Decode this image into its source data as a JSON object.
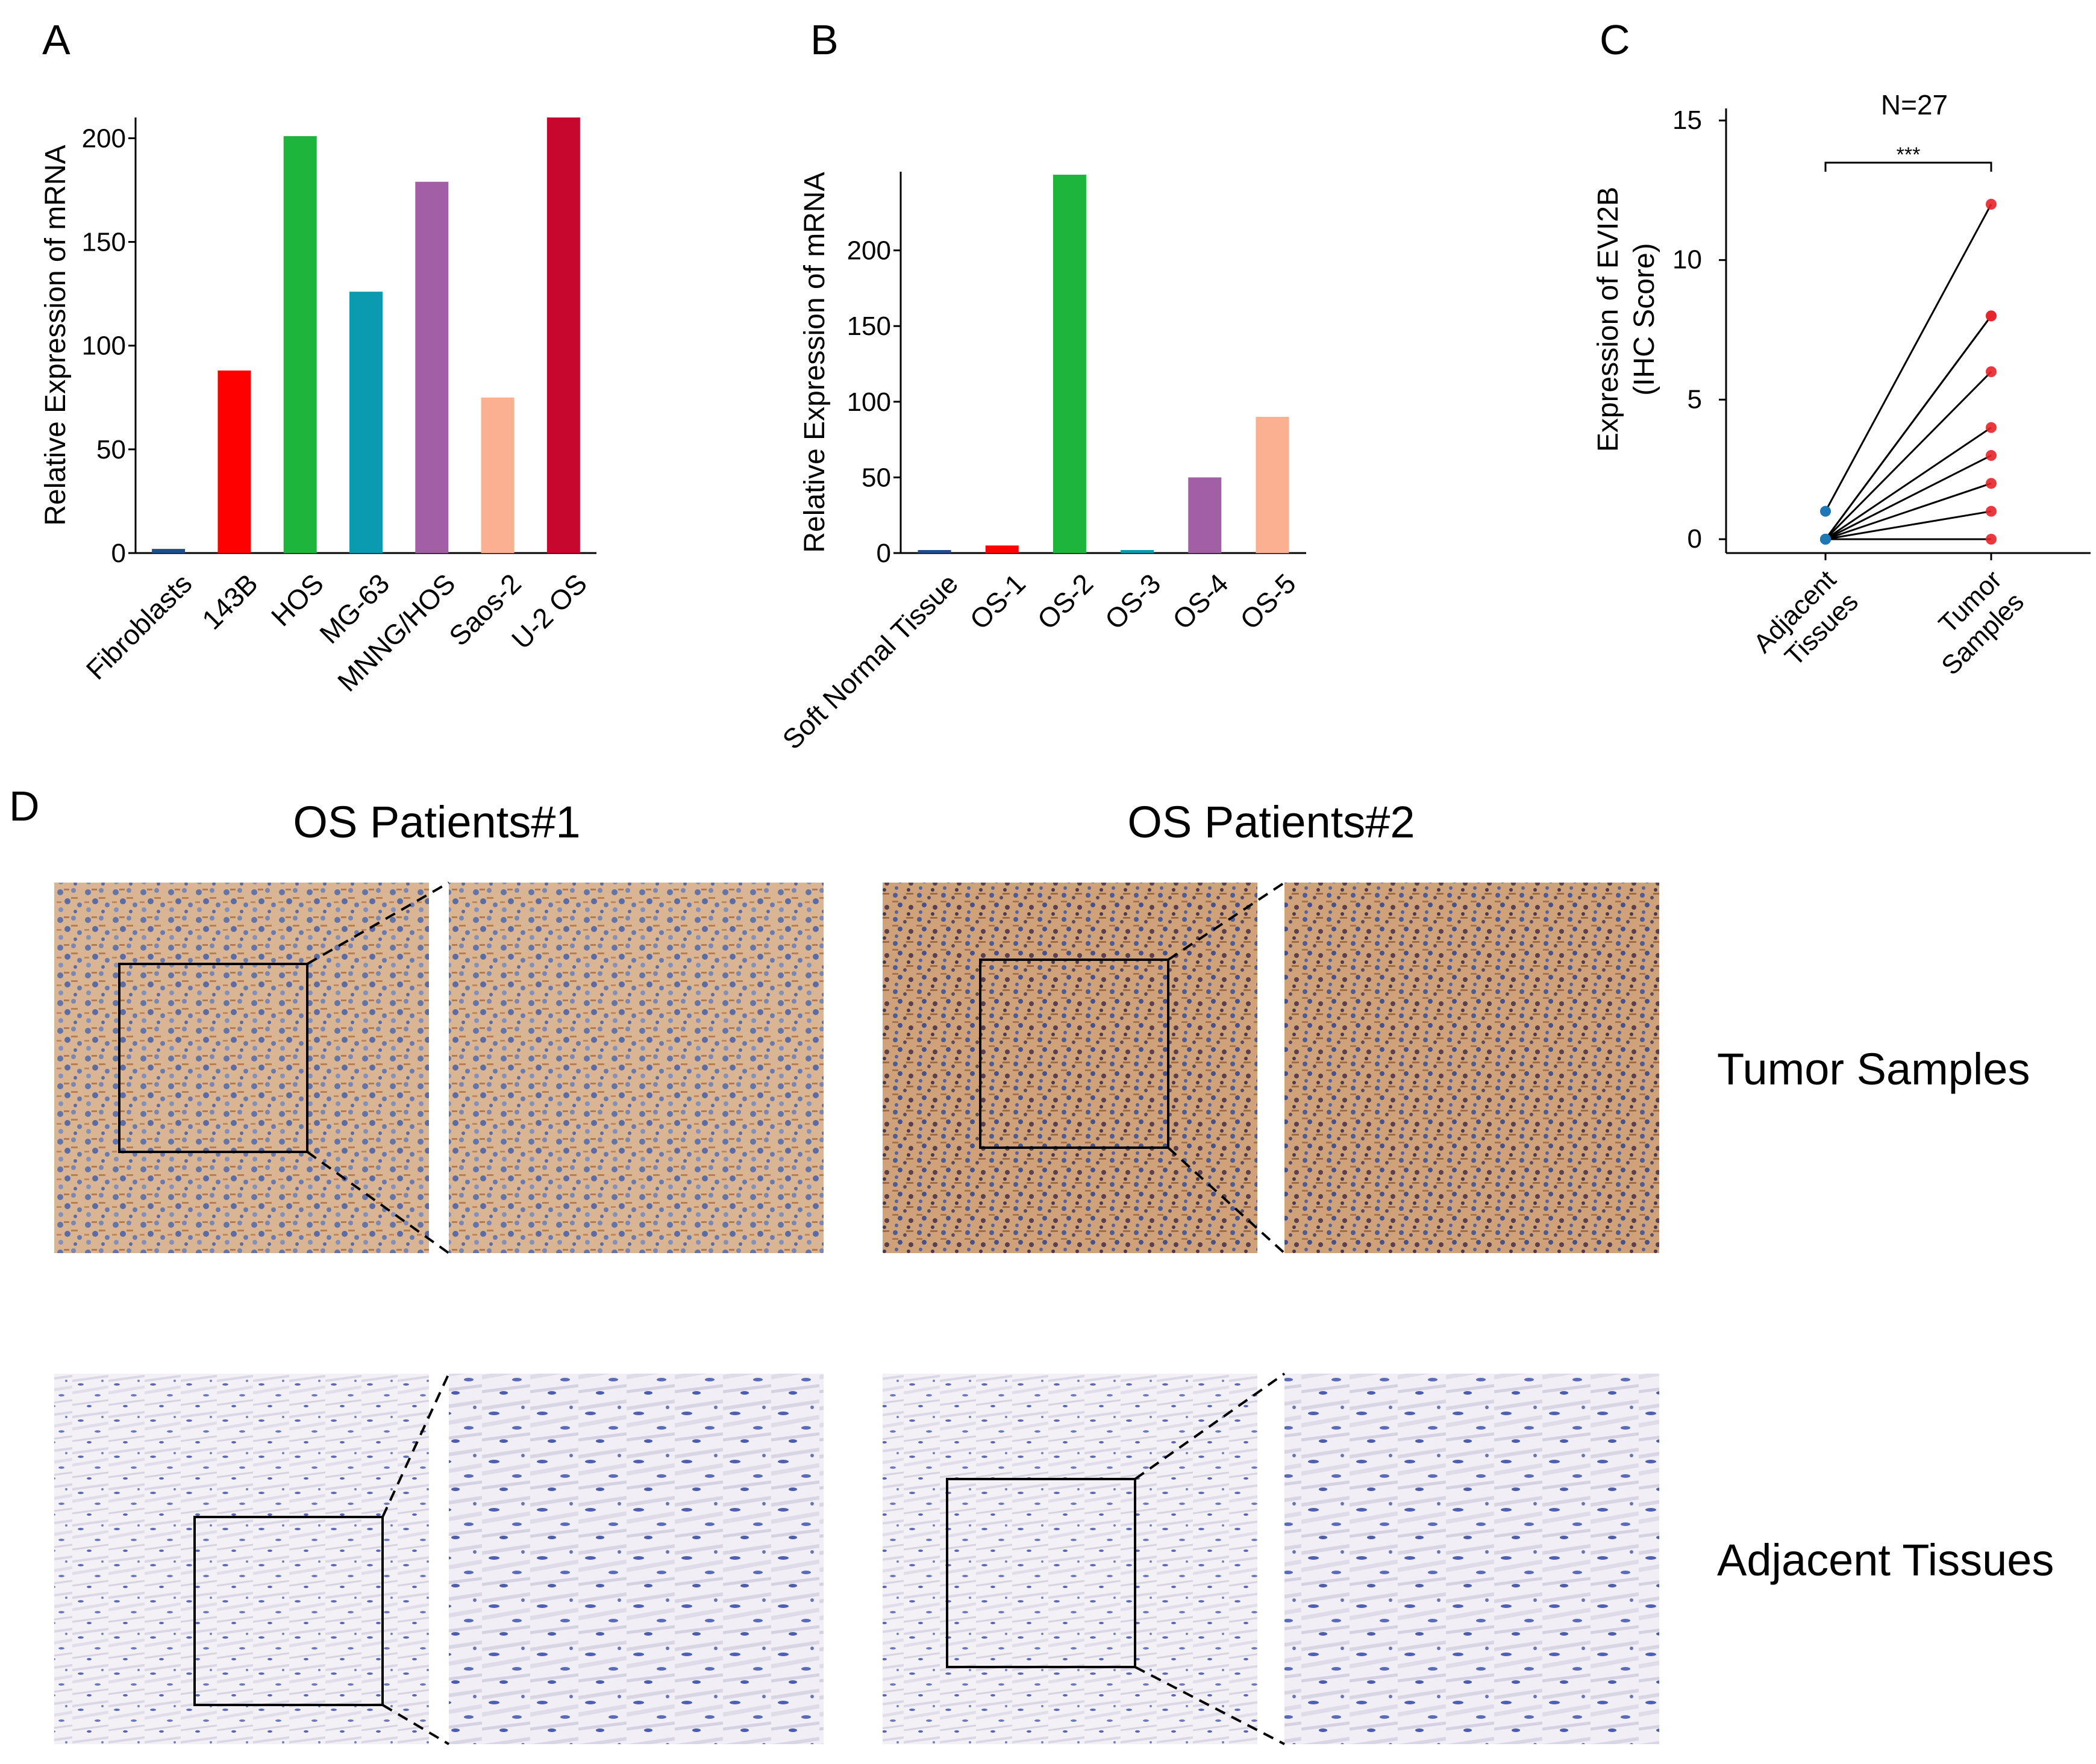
{
  "panels": {
    "a_letter": "A",
    "b_letter": "B",
    "c_letter": "C",
    "d_letter": "D"
  },
  "chart_data": [
    {
      "type": "bar",
      "panel": "A",
      "ylabel": "Relative Expression of mRNA",
      "xlabel": "",
      "categories": [
        "Fibroblasts",
        "143B",
        "HOS",
        "MG-63",
        "MNNG/HOS",
        "Saos-2",
        "U-2 OS"
      ],
      "values": [
        2,
        88,
        201,
        126,
        179,
        75,
        210
      ],
      "colors": [
        "#1F4E8C",
        "#FF0000",
        "#1DB53C",
        "#0A9BB0",
        "#A35FA6",
        "#FBB091",
        "#C8072F"
      ],
      "yticks": [
        0,
        50,
        100,
        150,
        200
      ],
      "ylim": [
        0,
        210
      ],
      "grid": false
    },
    {
      "type": "bar",
      "panel": "B",
      "ylabel": "Relative Expression of mRNA",
      "xlabel": "",
      "categories": [
        "Soft Normal Tissue",
        "OS-1",
        "OS-2",
        "OS-3",
        "OS-4",
        "OS-5"
      ],
      "values": [
        2,
        5,
        250,
        2,
        50,
        90
      ],
      "colors": [
        "#1F4E8C",
        "#FF0000",
        "#1DB53C",
        "#0A9BB0",
        "#A35FA6",
        "#FBB091"
      ],
      "yticks": [
        0,
        50,
        100,
        150,
        200
      ],
      "ylim": [
        0,
        252
      ],
      "grid": false
    },
    {
      "type": "scatter",
      "panel": "C",
      "title": "N=27",
      "ylabel_line1": "Expression of EVI2B",
      "ylabel_line2": "(IHC Score)",
      "xlabel": "",
      "categories": [
        "Adjacent Tissues",
        "Tumor Samples"
      ],
      "category_lines": [
        [
          "Adjacent",
          "Tissues"
        ],
        [
          "Tumor",
          "Samples"
        ]
      ],
      "pairs": [
        [
          1,
          12
        ],
        [
          0,
          8
        ],
        [
          0,
          8
        ],
        [
          0,
          6
        ],
        [
          0,
          4
        ],
        [
          0,
          3
        ],
        [
          0,
          2
        ],
        [
          0,
          1
        ],
        [
          0,
          0
        ]
      ],
      "significance": "***",
      "yticks": [
        0,
        5,
        10,
        15
      ],
      "ylim": [
        0,
        15
      ],
      "adjacent_color": "#1F77B4",
      "tumor_color": "#E8222A",
      "grid": false
    }
  ],
  "micrographs": {
    "patient1_title": "OS Patients#1",
    "patient2_title": "OS Patients#2",
    "row1_label": "Tumor Samples",
    "row2_label": "Adjacent Tissues",
    "tumor_stain": "#C8946A",
    "tumor_nuclei": "#5A6FA8",
    "adjacent_stain": "#EEEAF2",
    "adjacent_nuclei": "#4A5FB0"
  }
}
